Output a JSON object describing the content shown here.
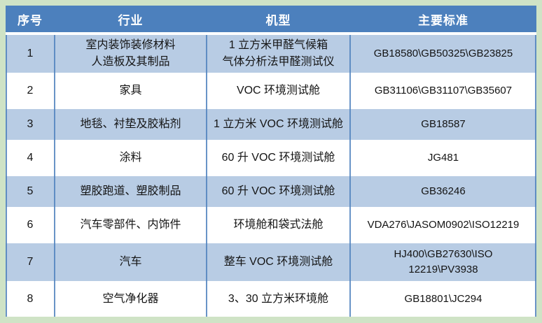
{
  "colors": {
    "page_bg": "#cfe3c6",
    "header_bg": "#4c80bd",
    "row_alt_bg": "#b8cce4",
    "row_bg": "#ffffff",
    "grid_line": "#4f81bd",
    "header_text": "#ffffff"
  },
  "table": {
    "headers": [
      "序号",
      "行业",
      "机型",
      "主要标准"
    ],
    "rows": [
      {
        "index": "1",
        "industry_lines": [
          "室内装饰装修材料",
          "人造板及其制品"
        ],
        "model_lines": [
          "1 立方米甲醛气候箱",
          "气体分析法甲醛测试仪"
        ],
        "standards_lines": [
          "GB18580\\GB50325\\GB23825"
        ],
        "shaded": true
      },
      {
        "index": "2",
        "industry_lines": [
          "家具"
        ],
        "model_lines": [
          "VOC 环境测试舱"
        ],
        "standards_lines": [
          "GB31106\\GB31107\\GB35607"
        ],
        "shaded": false
      },
      {
        "index": "3",
        "industry_lines": [
          "地毯、衬垫及胶粘剂"
        ],
        "model_lines": [
          "1 立方米 VOC 环境测试舱"
        ],
        "standards_lines": [
          "GB18587"
        ],
        "shaded": true
      },
      {
        "index": "4",
        "industry_lines": [
          "涂料"
        ],
        "model_lines": [
          "60 升 VOC 环境测试舱"
        ],
        "standards_lines": [
          "JG481"
        ],
        "shaded": false
      },
      {
        "index": "5",
        "industry_lines": [
          "塑胶跑道、塑胶制品"
        ],
        "model_lines": [
          "60 升 VOC 环境测试舱"
        ],
        "standards_lines": [
          "GB36246"
        ],
        "shaded": true
      },
      {
        "index": "6",
        "industry_lines": [
          "汽车零部件、内饰件"
        ],
        "model_lines": [
          "环境舱和袋式法舱"
        ],
        "standards_lines": [
          "VDA276\\JASOM0902\\ISO12219"
        ],
        "shaded": false
      },
      {
        "index": "7",
        "industry_lines": [
          "汽车"
        ],
        "model_lines": [
          "整车 VOC 环境测试舱"
        ],
        "standards_lines": [
          "HJ400\\GB27630\\ISO",
          "12219\\PV3938"
        ],
        "shaded": true
      },
      {
        "index": "8",
        "industry_lines": [
          "空气净化器"
        ],
        "model_lines": [
          "3、30 立方米环境舱"
        ],
        "standards_lines": [
          "GB18801\\JC294"
        ],
        "shaded": false
      }
    ]
  }
}
